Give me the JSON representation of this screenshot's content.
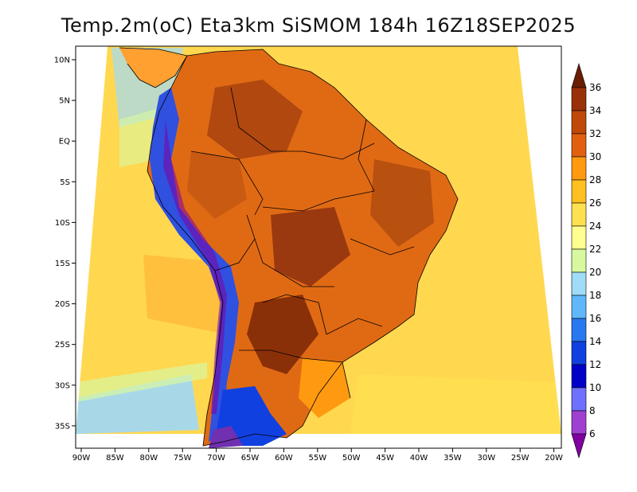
{
  "title": "Temp.2m(oC) Eta3km SiSMOM 184h 16Z18SEP2025",
  "map": {
    "lat_ticks": [
      "10N",
      "5N",
      "EQ",
      "5S",
      "10S",
      "15S",
      "20S",
      "25S",
      "30S",
      "35S"
    ],
    "lon_ticks": [
      "90W",
      "85W",
      "80W",
      "75W",
      "70W",
      "65W",
      "60W",
      "55W",
      "50W",
      "45W",
      "40W",
      "35W",
      "30W",
      "25W",
      "20W"
    ],
    "lon_range": [
      -90,
      -20
    ],
    "lat_range": [
      -37,
      11
    ]
  },
  "colorbar": {
    "unit": "oC",
    "levels": [
      6,
      8,
      10,
      12,
      14,
      16,
      18,
      20,
      22,
      24,
      26,
      28,
      30,
      32,
      34,
      36
    ],
    "colors": [
      "#8000a0",
      "#a040d0",
      "#7070ff",
      "#0000c8",
      "#1040e0",
      "#2878f0",
      "#60b8f8",
      "#a0dcf8",
      "#d8f8a0",
      "#ffff90",
      "#ffe050",
      "#ffc020",
      "#ff9a10",
      "#e06010",
      "#c04808",
      "#9a3008",
      "#6a1e04"
    ]
  },
  "colors": {
    "ocean": "#ffd850",
    "land_warm": "#e06a14",
    "land_hot": "#b04810",
    "andes": "#3050e0",
    "frame": "#000000"
  }
}
